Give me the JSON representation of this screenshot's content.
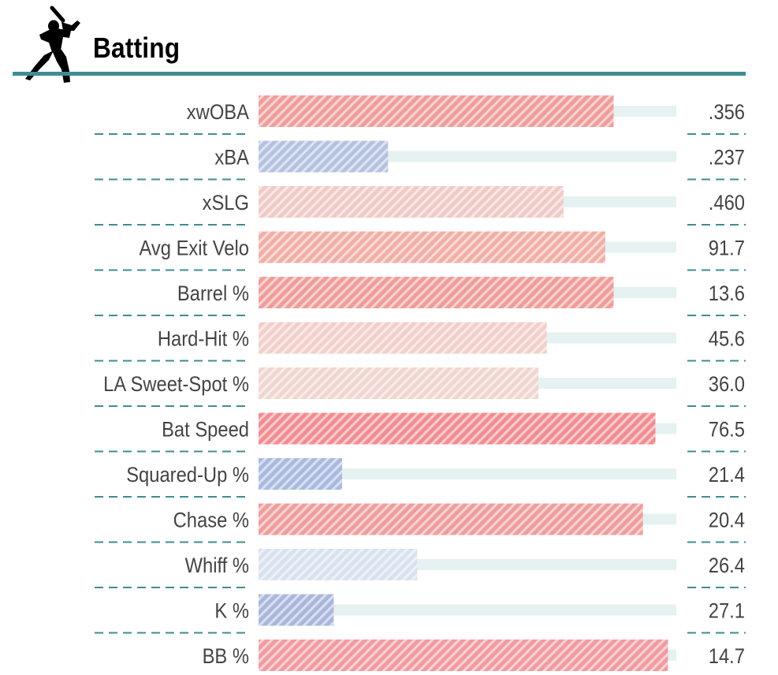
{
  "section": {
    "title": "Batting",
    "icon": "batter-silhouette-icon"
  },
  "colors": {
    "accent_rule": "#3f8d92",
    "track": "#e6f1f1",
    "label_text": "#444444",
    "value_text": "#444444"
  },
  "chart_data": {
    "type": "bar",
    "orientation": "horizontal",
    "title": "Batting",
    "bar_fill": "diagonal-hatch",
    "categories": [
      "xwOBA",
      "xBA",
      "xSLG",
      "Avg Exit Velo",
      "Barrel %",
      "Hard-Hit %",
      "LA Sweet-Spot %",
      "Bat Speed",
      "Squared-Up %",
      "Chase %",
      "Whiff %",
      "K %",
      "BB %"
    ],
    "values": [
      85,
      31,
      73,
      83,
      85,
      69,
      67,
      95,
      20,
      92,
      38,
      18,
      98
    ],
    "values_unit": "bar fill as percent of track (0-100)",
    "display_values": [
      ".356",
      ".237",
      ".460",
      "91.7",
      "13.6",
      "45.6",
      "36.0",
      "76.5",
      "21.4",
      "20.4",
      "26.4",
      "27.1",
      "14.7"
    ],
    "bar_colors": [
      "#ef9d9a",
      "#b4c2e0",
      "#f0cac6",
      "#f1aea6",
      "#ef9d9a",
      "#f2cfca",
      "#f0d5d0",
      "#f18c91",
      "#a9b9df",
      "#f09c9c",
      "#d8e1ee",
      "#a8b6db",
      "#f29aa0"
    ],
    "xlim": [
      0,
      100
    ],
    "grid": false,
    "legend": "none"
  }
}
